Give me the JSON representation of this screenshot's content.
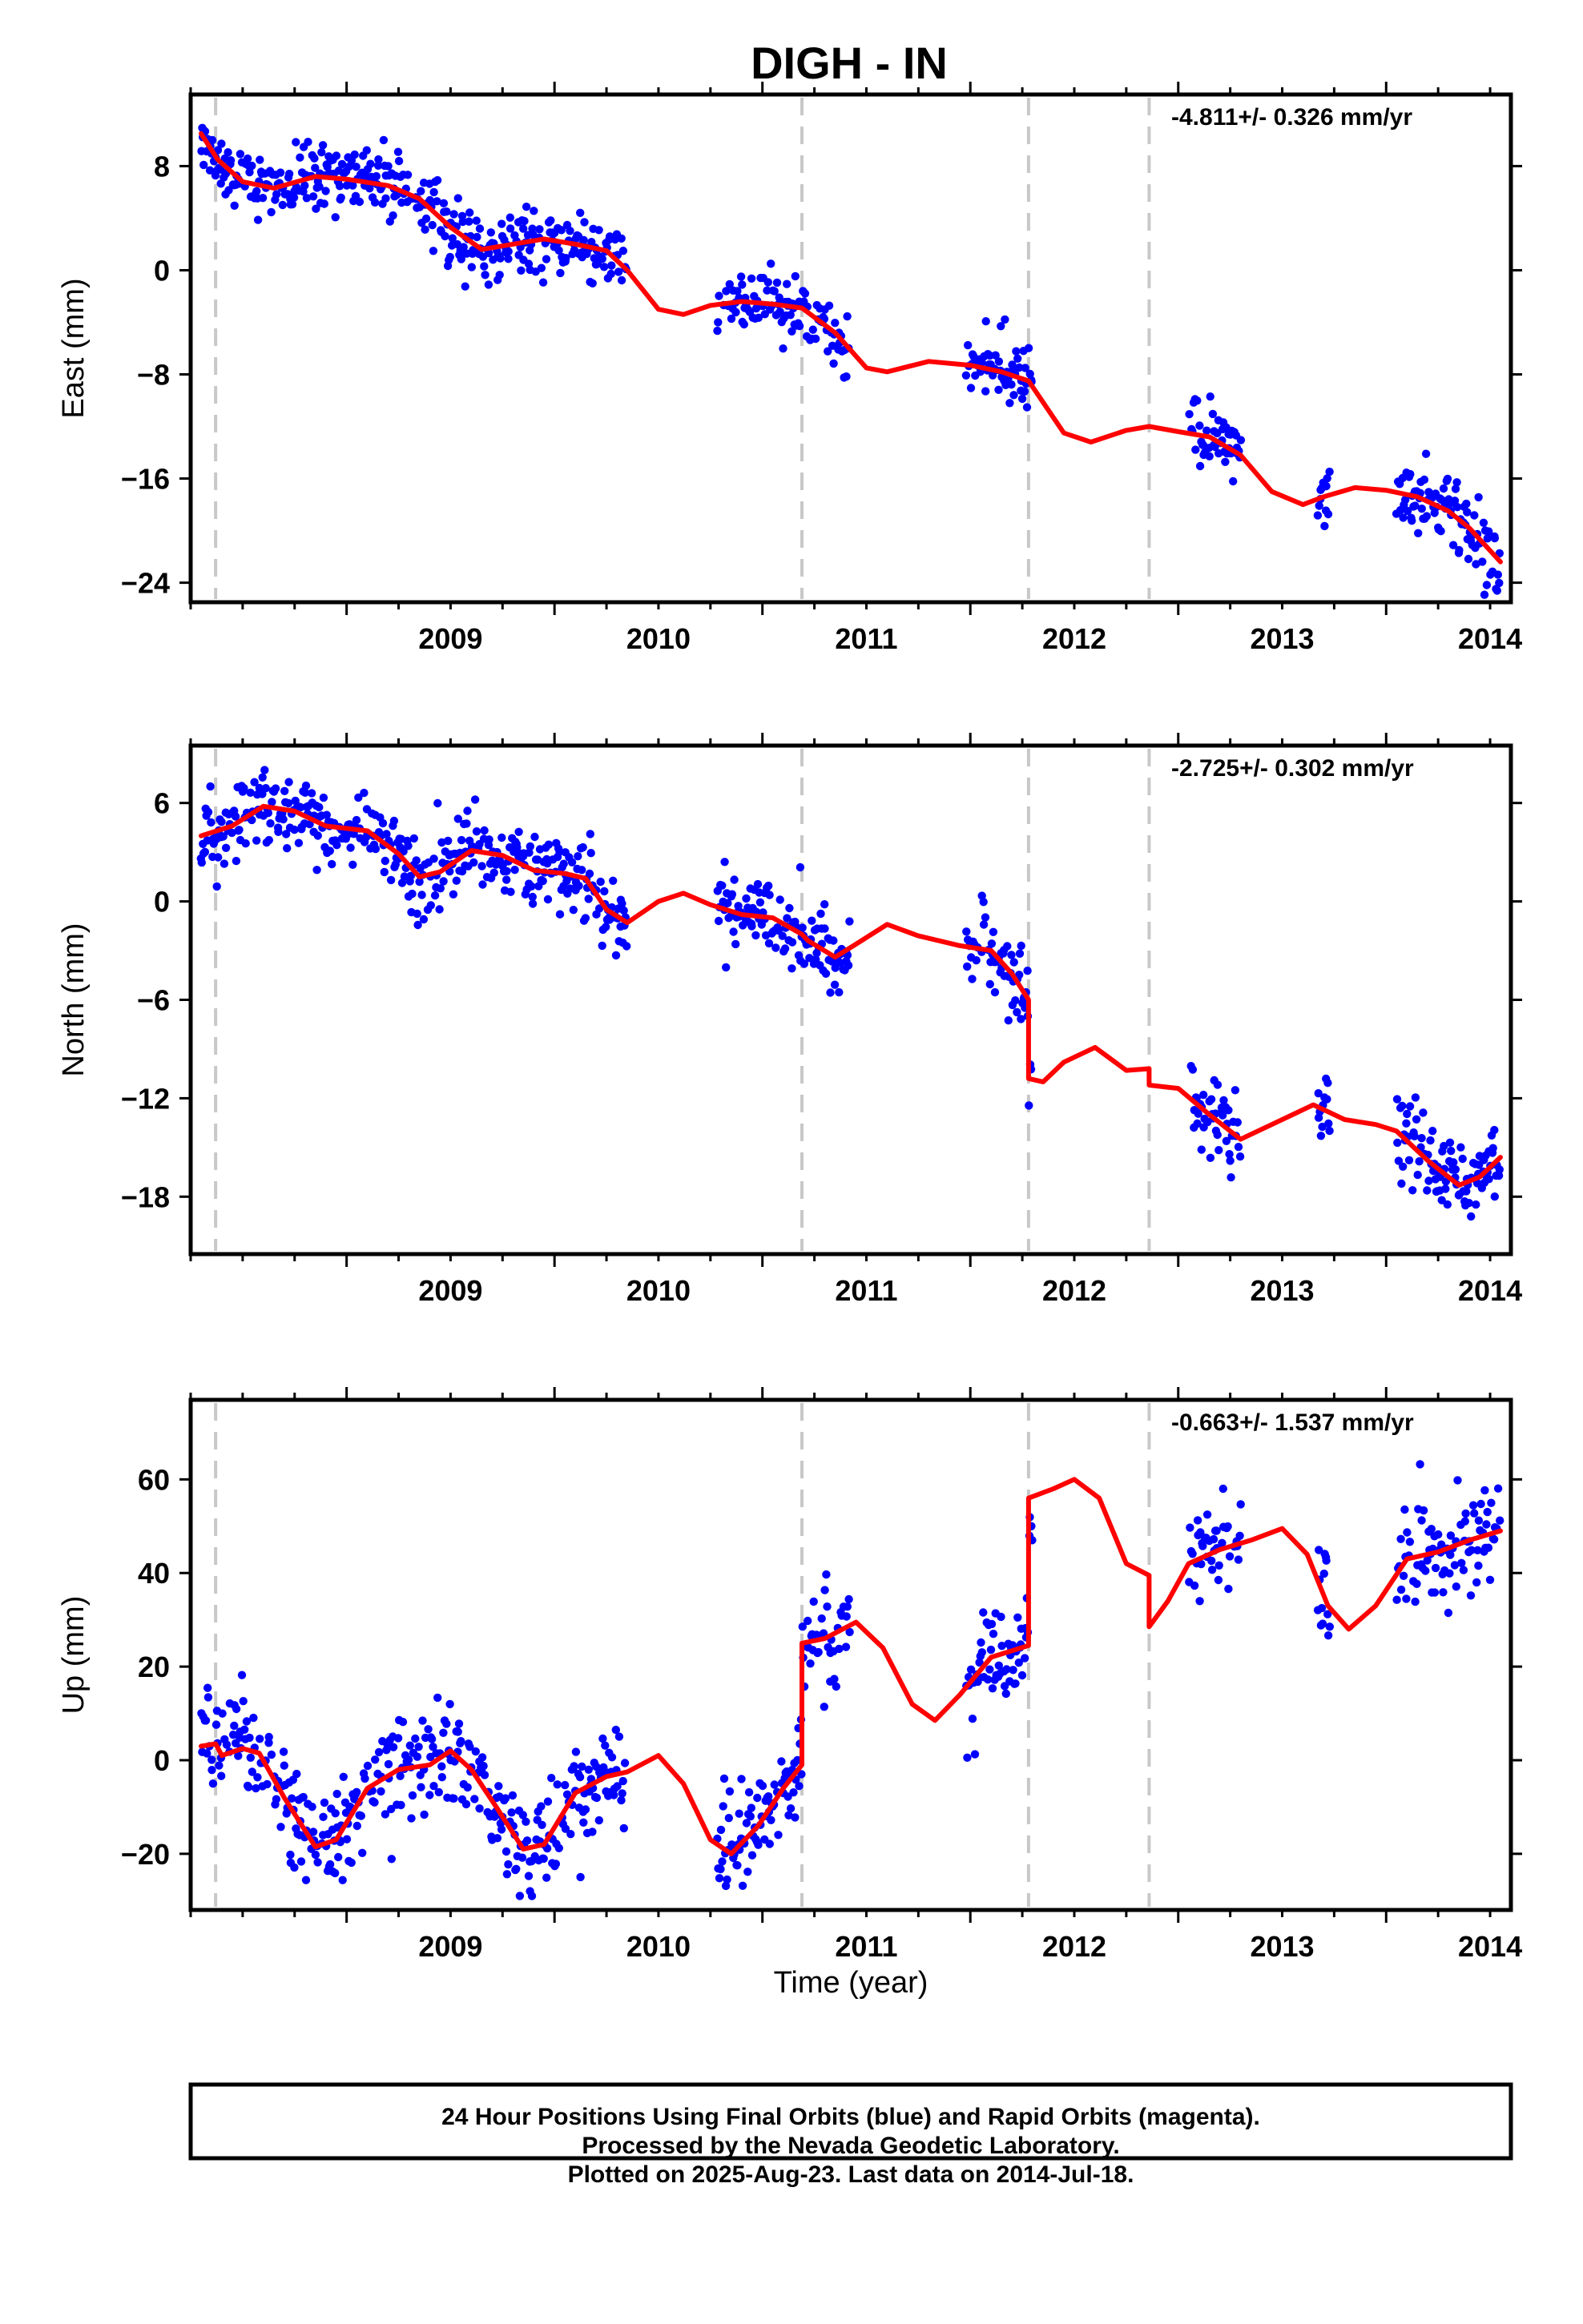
{
  "chart_data": {
    "type": "scatter",
    "title": "DIGH - IN",
    "xlabel": "Time (year)",
    "x_ticks": [
      "2009",
      "2010",
      "2011",
      "2012",
      "2013",
      "2014"
    ],
    "xlim": [
      2008.25,
      2014.6
    ],
    "event_lines": [
      2008.37,
      2011.19,
      2012.28,
      2012.86
    ],
    "colors": {
      "points": "#0000ff",
      "model": "#ff0000",
      "event": "#c8c8c8"
    },
    "panels": [
      {
        "name": "east",
        "ylabel": "East (mm)",
        "ylim": [
          -25.5,
          13.5
        ],
        "y_ticks": [
          8,
          0,
          -8,
          -16,
          -24
        ],
        "y_tick_labels": [
          "8",
          "0",
          "−8",
          "−16",
          "−24"
        ],
        "rate": "-4.811+/- 0.326 mm/yr",
        "data_gaps": [
          [
            2010.35,
            2010.78
          ],
          [
            2011.42,
            2011.98
          ],
          [
            2012.3,
            2013.05
          ],
          [
            2013.3,
            2013.67
          ],
          [
            2013.73,
            2014.05
          ]
        ],
        "model": [
          [
            2008.3,
            10.5
          ],
          [
            2008.38,
            8.5
          ],
          [
            2008.5,
            6.8
          ],
          [
            2008.65,
            6.3
          ],
          [
            2008.85,
            7.2
          ],
          [
            2009.0,
            7.0
          ],
          [
            2009.2,
            6.5
          ],
          [
            2009.35,
            5.5
          ],
          [
            2009.5,
            3.3
          ],
          [
            2009.65,
            1.6
          ],
          [
            2009.8,
            2.0
          ],
          [
            2009.95,
            2.4
          ],
          [
            2010.1,
            2.0
          ],
          [
            2010.25,
            1.5
          ],
          [
            2010.35,
            0.0
          ],
          [
            2010.5,
            -3.0
          ],
          [
            2010.62,
            -3.4
          ],
          [
            2010.75,
            -2.7
          ],
          [
            2010.9,
            -2.4
          ],
          [
            2011.05,
            -2.6
          ],
          [
            2011.19,
            -2.9
          ],
          [
            2011.35,
            -4.8
          ],
          [
            2011.5,
            -7.5
          ],
          [
            2011.6,
            -7.8
          ],
          [
            2011.8,
            -7.0
          ],
          [
            2012.0,
            -7.3
          ],
          [
            2012.15,
            -7.8
          ],
          [
            2012.28,
            -8.5
          ],
          [
            2012.45,
            -12.5
          ],
          [
            2012.58,
            -13.2
          ],
          [
            2012.75,
            -12.3
          ],
          [
            2012.86,
            -12.0
          ],
          [
            2013.0,
            -12.4
          ],
          [
            2013.15,
            -12.8
          ],
          [
            2013.3,
            -14.2
          ],
          [
            2013.45,
            -17.0
          ],
          [
            2013.6,
            -18.0
          ],
          [
            2013.7,
            -17.4
          ],
          [
            2013.85,
            -16.7
          ],
          [
            2014.0,
            -16.9
          ],
          [
            2014.15,
            -17.4
          ],
          [
            2014.3,
            -18.5
          ],
          [
            2014.4,
            -19.8
          ],
          [
            2014.55,
            -22.4
          ]
        ],
        "noise": 1.3
      },
      {
        "name": "north",
        "ylabel": "North (mm)",
        "ylim": [
          -21.5,
          9.5
        ],
        "y_ticks": [
          6,
          0,
          -6,
          -12,
          -18
        ],
        "y_tick_labels": [
          "6",
          "0",
          "−6",
          "−12",
          "−18"
        ],
        "rate": "-2.725+/- 0.302 mm/yr",
        "data_gaps": [
          [
            2010.35,
            2010.78
          ],
          [
            2011.42,
            2011.98
          ],
          [
            2012.3,
            2013.05
          ],
          [
            2013.3,
            2013.67
          ],
          [
            2013.73,
            2014.05
          ]
        ],
        "model": [
          [
            2008.3,
            4.0
          ],
          [
            2008.45,
            4.6
          ],
          [
            2008.6,
            5.8
          ],
          [
            2008.75,
            5.5
          ],
          [
            2008.9,
            4.6
          ],
          [
            2009.1,
            4.3
          ],
          [
            2009.25,
            2.9
          ],
          [
            2009.35,
            1.5
          ],
          [
            2009.45,
            1.8
          ],
          [
            2009.6,
            3.1
          ],
          [
            2009.75,
            2.8
          ],
          [
            2009.9,
            1.9
          ],
          [
            2010.05,
            1.7
          ],
          [
            2010.15,
            1.4
          ],
          [
            2010.25,
            -0.5
          ],
          [
            2010.35,
            -1.3
          ],
          [
            2010.5,
            0.0
          ],
          [
            2010.62,
            0.5
          ],
          [
            2010.75,
            -0.2
          ],
          [
            2010.9,
            -0.8
          ],
          [
            2011.05,
            -1.0
          ],
          [
            2011.19,
            -2.0
          ],
          [
            2011.22,
            -2.4
          ],
          [
            2011.35,
            -3.4
          ],
          [
            2011.45,
            -2.6
          ],
          [
            2011.6,
            -1.4
          ],
          [
            2011.75,
            -2.1
          ],
          [
            2011.95,
            -2.7
          ],
          [
            2012.1,
            -3.0
          ],
          [
            2012.2,
            -4.4
          ],
          [
            2012.28,
            -6.0
          ],
          [
            2012.28,
            -10.8
          ],
          [
            2012.35,
            -11.0
          ],
          [
            2012.45,
            -9.8
          ],
          [
            2012.6,
            -8.9
          ],
          [
            2012.75,
            -10.3
          ],
          [
            2012.86,
            -10.2
          ],
          [
            2012.86,
            -11.2
          ],
          [
            2013.0,
            -11.4
          ],
          [
            2013.15,
            -13.0
          ],
          [
            2013.3,
            -14.5
          ],
          [
            2013.45,
            -13.6
          ],
          [
            2013.65,
            -12.4
          ],
          [
            2013.8,
            -13.3
          ],
          [
            2013.95,
            -13.6
          ],
          [
            2014.05,
            -14.0
          ],
          [
            2014.2,
            -15.8
          ],
          [
            2014.35,
            -17.3
          ],
          [
            2014.45,
            -16.8
          ],
          [
            2014.55,
            -15.6
          ]
        ],
        "noise": 1.2
      },
      {
        "name": "up",
        "ylabel": "Up (mm)",
        "ylim": [
          -32,
          77
        ],
        "y_ticks": [
          60,
          40,
          20,
          0,
          -20
        ],
        "y_tick_labels": [
          "60",
          "40",
          "20",
          "0",
          "−20"
        ],
        "rate": "-0.663+/- 1.537 mm/yr",
        "data_gaps": [
          [
            2010.35,
            2010.78
          ],
          [
            2011.42,
            2011.98
          ],
          [
            2012.3,
            2013.05
          ],
          [
            2013.3,
            2013.67
          ],
          [
            2013.73,
            2014.05
          ]
        ],
        "model": [
          [
            2008.3,
            3.0
          ],
          [
            2008.37,
            3.5
          ],
          [
            2008.4,
            1.0
          ],
          [
            2008.5,
            2.5
          ],
          [
            2008.58,
            1.5
          ],
          [
            2008.7,
            -8.0
          ],
          [
            2008.85,
            -18.5
          ],
          [
            2008.95,
            -17.0
          ],
          [
            2009.1,
            -6.0
          ],
          [
            2009.25,
            -2.0
          ],
          [
            2009.4,
            -1.0
          ],
          [
            2009.5,
            2.0
          ],
          [
            2009.6,
            -2.0
          ],
          [
            2009.72,
            -10.0
          ],
          [
            2009.85,
            -19.0
          ],
          [
            2009.95,
            -18.0
          ],
          [
            2010.1,
            -7.0
          ],
          [
            2010.25,
            -3.5
          ],
          [
            2010.35,
            -2.5
          ],
          [
            2010.5,
            1.0
          ],
          [
            2010.62,
            -5.0
          ],
          [
            2010.75,
            -17.0
          ],
          [
            2010.85,
            -20.0
          ],
          [
            2010.98,
            -14.0
          ],
          [
            2011.1,
            -6.0
          ],
          [
            2011.19,
            -1.0
          ],
          [
            2011.19,
            25.0
          ],
          [
            2011.3,
            26.0
          ],
          [
            2011.45,
            29.5
          ],
          [
            2011.58,
            24.0
          ],
          [
            2011.72,
            12.0
          ],
          [
            2011.83,
            8.5
          ],
          [
            2011.95,
            14.0
          ],
          [
            2012.1,
            22.0
          ],
          [
            2012.28,
            24.5
          ],
          [
            2012.28,
            56.0
          ],
          [
            2012.4,
            58.0
          ],
          [
            2012.5,
            60.0
          ],
          [
            2012.62,
            56.0
          ],
          [
            2012.75,
            42.0
          ],
          [
            2012.86,
            39.5
          ],
          [
            2012.86,
            28.5
          ],
          [
            2012.95,
            34.0
          ],
          [
            2013.05,
            42.0
          ],
          [
            2013.2,
            45.0
          ],
          [
            2013.35,
            47.0
          ],
          [
            2013.5,
            49.5
          ],
          [
            2013.62,
            44.0
          ],
          [
            2013.72,
            33.0
          ],
          [
            2013.82,
            28.0
          ],
          [
            2013.95,
            33.0
          ],
          [
            2014.1,
            43.0
          ],
          [
            2014.25,
            44.5
          ],
          [
            2014.4,
            47.0
          ],
          [
            2014.55,
            49.0
          ]
        ],
        "noise": 5.5
      }
    ],
    "caption": [
      "24 Hour Positions Using Final Orbits (blue) and Rapid Orbits (magenta).",
      "Processed by the Nevada Geodetic Laboratory.",
      "Plotted on 2025-Aug-23. Last data on 2014-Jul-18."
    ]
  }
}
